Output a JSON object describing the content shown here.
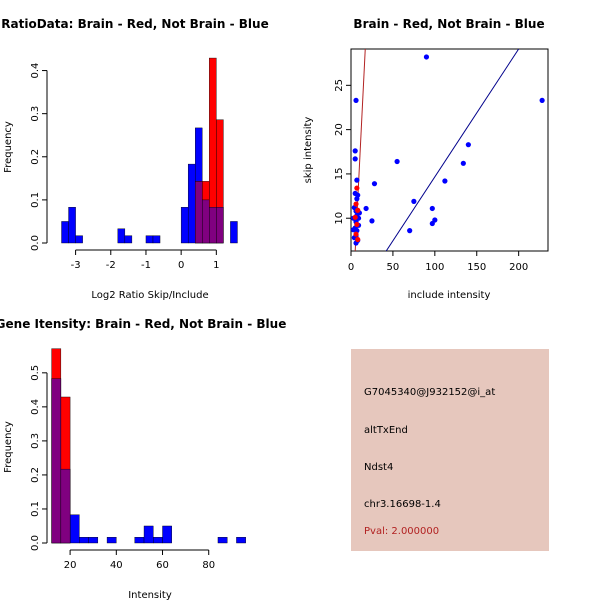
{
  "chart_data": [
    {
      "type": "bar",
      "title": "RatioData: Brain - Red, Not Brain - Blue",
      "xlabel": "Log2 Ratio Skip/Include",
      "ylabel": "Frequency",
      "xlim": [
        -3.5,
        1.9
      ],
      "ylim": [
        0,
        0.45
      ],
      "x_ticks": [
        -3,
        -2,
        -1,
        0,
        1
      ],
      "x_tick_labels": [
        "-3",
        "-2",
        "-1",
        "0",
        "1"
      ],
      "y_ticks": [
        0.0,
        0.1,
        0.2,
        0.3,
        0.4
      ],
      "y_tick_labels": [
        "0.0",
        "0.1",
        "0.2",
        "0.3",
        "0.4"
      ],
      "bin_width": 0.2,
      "series": [
        {
          "name": "Not Brain",
          "color": "#0000ff",
          "bins": [
            {
              "x0": -3.4,
              "value": 0.05
            },
            {
              "x0": -3.2,
              "value": 0.083
            },
            {
              "x0": -3.0,
              "value": 0.017
            },
            {
              "x0": -1.8,
              "value": 0.033
            },
            {
              "x0": -1.6,
              "value": 0.017
            },
            {
              "x0": -1.0,
              "value": 0.017
            },
            {
              "x0": -0.8,
              "value": 0.017
            },
            {
              "x0": 0.0,
              "value": 0.083
            },
            {
              "x0": 0.2,
              "value": 0.183
            },
            {
              "x0": 0.4,
              "value": 0.267
            },
            {
              "x0": 0.6,
              "value": 0.1
            },
            {
              "x0": 0.8,
              "value": 0.083
            },
            {
              "x0": 1.0,
              "value": 0.083
            },
            {
              "x0": 1.4,
              "value": 0.05
            }
          ]
        },
        {
          "name": "Brain",
          "color": "#ff0000",
          "bins": [
            {
              "x0": 0.4,
              "value": 0.143
            },
            {
              "x0": 0.6,
              "value": 0.143
            },
            {
              "x0": 0.8,
              "value": 0.429
            },
            {
              "x0": 1.0,
              "value": 0.286
            }
          ]
        }
      ]
    },
    {
      "type": "scatter",
      "title": "Brain - Red, Not Brain - Blue",
      "xlabel": "include intensity",
      "ylabel": "skip intensity",
      "xlim": [
        0,
        235
      ],
      "ylim": [
        6.3,
        29.1
      ],
      "x_ticks": [
        0,
        50,
        100,
        150,
        200
      ],
      "x_tick_labels": [
        "0",
        "50",
        "100",
        "150",
        "200"
      ],
      "y_ticks": [
        10,
        15,
        20,
        25
      ],
      "y_tick_labels": [
        "10",
        "15",
        "20",
        "25"
      ],
      "lines": [
        {
          "name": "Brain fit",
          "color": "#b22222",
          "x1": 5,
          "y1": 6.3,
          "x2": 17,
          "y2": 29.1
        },
        {
          "name": "Not Brain fit",
          "color": "#00008b",
          "x1": 42,
          "y1": 6.3,
          "x2": 200,
          "y2": 29.1
        }
      ],
      "series": [
        {
          "name": "Not Brain",
          "color": "#0000ff",
          "points": [
            [
              90,
              28.2
            ],
            [
              228,
              23.3
            ],
            [
              6,
              23.3
            ],
            [
              5,
              17.6
            ],
            [
              5,
              16.7
            ],
            [
              55,
              16.4
            ],
            [
              140,
              18.3
            ],
            [
              134,
              16.2
            ],
            [
              7,
              14.3
            ],
            [
              28,
              13.9
            ],
            [
              112,
              14.2
            ],
            [
              8,
              12.6
            ],
            [
              7,
              12.2
            ],
            [
              75,
              11.9
            ],
            [
              97,
              11.1
            ],
            [
              18,
              11.1
            ],
            [
              4,
              11.2
            ],
            [
              6,
              10.8
            ],
            [
              7,
              10.3
            ],
            [
              10,
              10.6
            ],
            [
              3,
              10.0
            ],
            [
              25,
              9.7
            ],
            [
              100,
              9.8
            ],
            [
              97,
              9.4
            ],
            [
              6,
              9.6
            ],
            [
              9,
              9.2
            ],
            [
              5,
              8.9
            ],
            [
              3,
              8.7
            ],
            [
              7,
              8.6
            ],
            [
              70,
              8.6
            ],
            [
              6,
              8.0
            ],
            [
              4,
              7.8
            ],
            [
              8,
              7.5
            ],
            [
              6,
              7.2
            ],
            [
              9,
              10.0
            ],
            [
              5,
              12.8
            ]
          ]
        },
        {
          "name": "Brain",
          "color": "#ff0000",
          "points": [
            [
              7,
              13.4
            ],
            [
              6,
              11.6
            ],
            [
              8,
              10.9
            ],
            [
              5,
              10.1
            ],
            [
              7,
              9.3
            ],
            [
              6,
              8.2
            ],
            [
              8,
              7.6
            ]
          ]
        }
      ]
    },
    {
      "type": "bar",
      "title": "Gene Itensity: Brain - Red, Not Brain - Blue",
      "xlabel": "Intensity",
      "ylabel": "Frequency",
      "xlim": [
        10,
        97
      ],
      "ylim": [
        0,
        0.57
      ],
      "x_ticks": [
        20,
        40,
        60,
        80
      ],
      "x_tick_labels": [
        "20",
        "40",
        "60",
        "80"
      ],
      "y_ticks": [
        0.0,
        0.1,
        0.2,
        0.3,
        0.4,
        0.5
      ],
      "y_tick_labels": [
        "0.0",
        "0.1",
        "0.2",
        "0.3",
        "0.4",
        "0.5"
      ],
      "bin_width": 4,
      "series": [
        {
          "name": "Not Brain",
          "color": "#0000ff",
          "bins": [
            {
              "x0": 12,
              "value": 0.483
            },
            {
              "x0": 16,
              "value": 0.217
            },
            {
              "x0": 20,
              "value": 0.083
            },
            {
              "x0": 24,
              "value": 0.017
            },
            {
              "x0": 28,
              "value": 0.017
            },
            {
              "x0": 36,
              "value": 0.017
            },
            {
              "x0": 48,
              "value": 0.017
            },
            {
              "x0": 52,
              "value": 0.05
            },
            {
              "x0": 56,
              "value": 0.017
            },
            {
              "x0": 60,
              "value": 0.05
            },
            {
              "x0": 84,
              "value": 0.017
            },
            {
              "x0": 92,
              "value": 0.017
            }
          ]
        },
        {
          "name": "Brain",
          "color": "#ff0000",
          "bins": [
            {
              "x0": 12,
              "value": 0.571
            },
            {
              "x0": 16,
              "value": 0.429
            }
          ]
        }
      ]
    }
  ],
  "info": {
    "probe_id": "G7045340@J932152@i_at",
    "event_type": "altTxEnd",
    "gene": "Ndst4",
    "location": "chr3.16698-1.4",
    "pval": "Pval: 2.000000"
  },
  "colors": {
    "info_bg": "#e6c7bd",
    "pval": "#b22222",
    "overlap": "#800080"
  }
}
